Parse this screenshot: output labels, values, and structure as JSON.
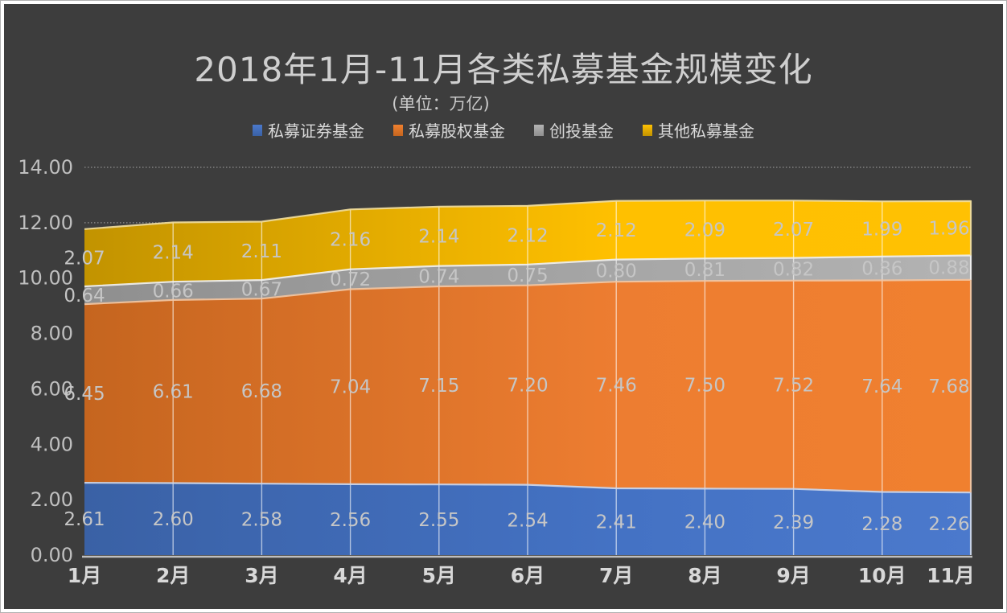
{
  "chart_data": {
    "type": "area",
    "stacked": true,
    "title": "2018年1月-11月各类私募基金规模变化",
    "subtitle": "(单位：万亿)",
    "legend_position": "top",
    "categories": [
      "1月",
      "2月",
      "3月",
      "4月",
      "5月",
      "6月",
      "7月",
      "8月",
      "9月",
      "10月",
      "11月"
    ],
    "series": [
      {
        "name": "私募证券基金",
        "color": "#4472C4",
        "color_dark": "#3A61A5",
        "color_light": "#4B79CC",
        "edge": "#CBD6EC",
        "values": [
          2.61,
          2.6,
          2.58,
          2.56,
          2.55,
          2.54,
          2.41,
          2.4,
          2.39,
          2.28,
          2.26
        ]
      },
      {
        "name": "私募股权基金",
        "color": "#ED7D31",
        "color_dark": "#C5651F",
        "color_light": "#F0802F",
        "edge": "#F2C6A2",
        "values": [
          6.45,
          6.61,
          6.68,
          7.04,
          7.15,
          7.2,
          7.46,
          7.5,
          7.52,
          7.64,
          7.68
        ]
      },
      {
        "name": "创投基金",
        "color": "#A6A6A6",
        "color_dark": "#8F8F8F",
        "color_light": "#B3B3B3",
        "edge": "#F0F0F0",
        "values": [
          0.64,
          0.66,
          0.67,
          0.72,
          0.74,
          0.75,
          0.8,
          0.81,
          0.82,
          0.86,
          0.88
        ]
      },
      {
        "name": "其他私募基金",
        "color": "#FFC000",
        "color_dark": "#C29300",
        "color_light": "#FFC103",
        "edge": "#F0DC9C",
        "values": [
          2.07,
          2.14,
          2.11,
          2.16,
          2.14,
          2.12,
          2.12,
          2.09,
          2.07,
          1.99,
          1.96
        ]
      }
    ],
    "xlabel": "",
    "ylabel": "",
    "ylim": [
      0,
      14
    ],
    "y_tick_step": 2,
    "y_tick_decimals": 2,
    "y_tick_labels": [
      "0.00",
      "2.00",
      "4.00",
      "6.00",
      "8.00",
      "10.00",
      "12.00",
      "14.00"
    ],
    "grid": {
      "horizontal": "dotted",
      "vertical": "solid-inside-areas"
    }
  },
  "colors": {
    "background": "#3D3D3D",
    "frame_border": "#B0B0B0",
    "frame_fill": "#FFFFFF",
    "title_text": "#CFCFCF",
    "subtitle_text": "#CACACA",
    "legend_text": "#D9D9D9",
    "y_axis_label": "#BFBFBF",
    "x_axis_label": "#D8D8D8",
    "data_label": "#C6C6C6",
    "dotted_gridline": "#909090",
    "axis_line": "#BFBFBF",
    "vertical_gridline": "rgba(255,255,255,0.6)"
  }
}
